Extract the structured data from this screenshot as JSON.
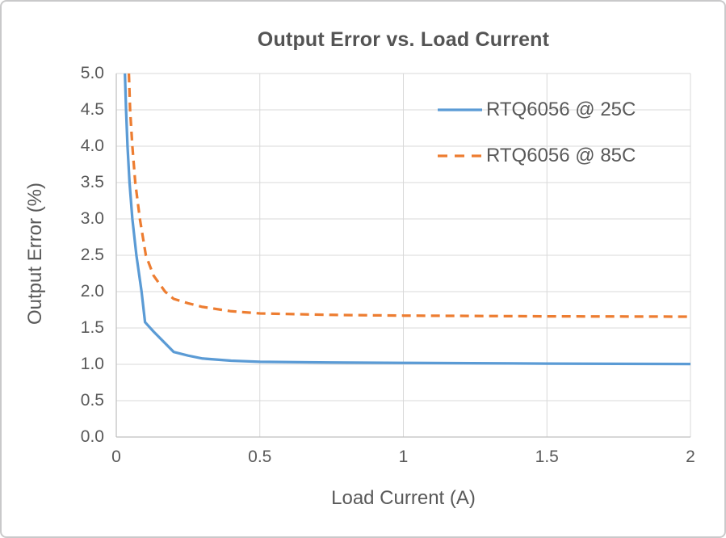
{
  "frame": {
    "background_color": "#ffffff",
    "border_color": "#c9c9ca"
  },
  "chart_data": {
    "type": "line",
    "title": "Output Error vs. Load Current",
    "xlabel": "Load Current (A)",
    "ylabel": "Output Error (%)",
    "xlim": [
      0,
      2
    ],
    "ylim": [
      0,
      5
    ],
    "grid": true,
    "grid_color": "#d9d9d9",
    "axis_line_color": "#bfbfbf",
    "text_color": "#595959",
    "title_color": "#545454",
    "legend_position": "top-right-inside",
    "x_ticks": [
      {
        "label": "0",
        "value": 0
      },
      {
        "label": "0.5",
        "value": 0.5
      },
      {
        "label": "1",
        "value": 1
      },
      {
        "label": "1.5",
        "value": 1.5
      },
      {
        "label": "2",
        "value": 2
      }
    ],
    "y_ticks": [
      {
        "label": "0.0",
        "value": 0
      },
      {
        "label": "0.5",
        "value": 0.5
      },
      {
        "label": "1.0",
        "value": 1
      },
      {
        "label": "1.5",
        "value": 1.5
      },
      {
        "label": "2.0",
        "value": 2
      },
      {
        "label": "2.5",
        "value": 2.5
      },
      {
        "label": "3.0",
        "value": 3
      },
      {
        "label": "3.5",
        "value": 3.5
      },
      {
        "label": "4.0",
        "value": 4
      },
      {
        "label": "4.5",
        "value": 4.5
      },
      {
        "label": "5.0",
        "value": 5
      }
    ],
    "series": [
      {
        "name": "RTQ6056 @ 25C",
        "color": "#5b9bd5",
        "style": "solid",
        "x": [
          0.03,
          0.034,
          0.039,
          0.046,
          0.056,
          0.07,
          0.088,
          0.1,
          0.13,
          0.16,
          0.2,
          0.25,
          0.3,
          0.4,
          0.5,
          0.75,
          1.0,
          1.5,
          2.0
        ],
        "y": [
          5.0,
          4.5,
          4.0,
          3.5,
          3.0,
          2.5,
          2.0,
          1.58,
          1.45,
          1.33,
          1.17,
          1.12,
          1.08,
          1.05,
          1.035,
          1.025,
          1.02,
          1.01,
          1.005
        ]
      },
      {
        "name": "RTQ6056 @ 85C",
        "color": "#ed7d31",
        "style": "dashed",
        "x": [
          0.044,
          0.048,
          0.056,
          0.066,
          0.082,
          0.103,
          0.13,
          0.17,
          0.2,
          0.25,
          0.3,
          0.4,
          0.5,
          0.75,
          1.0,
          1.5,
          2.0
        ],
        "y": [
          5.0,
          4.5,
          4.0,
          3.5,
          3.0,
          2.5,
          2.22,
          2.0,
          1.9,
          1.84,
          1.79,
          1.73,
          1.7,
          1.68,
          1.67,
          1.66,
          1.655
        ]
      }
    ]
  }
}
